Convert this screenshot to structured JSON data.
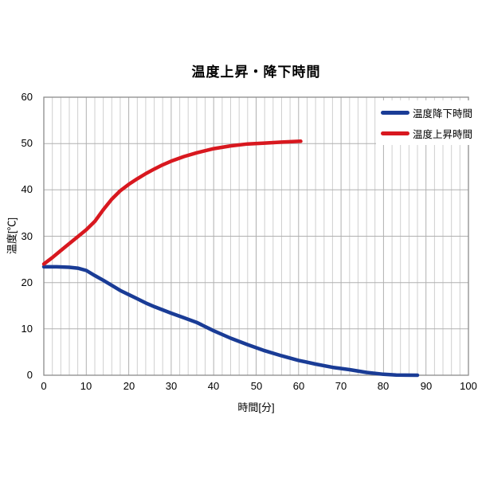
{
  "chart": {
    "title": "温度上昇・降下時間",
    "xlabel": "時間[分]",
    "ylabel": "温度[℃]"
  },
  "chart_data": {
    "type": "line",
    "title": "温度上昇・降下時間",
    "xlabel": "時間[分]",
    "ylabel": "温度[℃]",
    "xlim": [
      0,
      100
    ],
    "ylim": [
      0,
      60
    ],
    "x_major_ticks": [
      0,
      10,
      20,
      30,
      40,
      50,
      60,
      70,
      80,
      90,
      100
    ],
    "y_major_ticks": [
      0,
      10,
      20,
      30,
      40,
      50,
      60
    ],
    "x_minor_step": 2,
    "grid": {
      "minor_color": "#cfcfcf",
      "major_color": "#b0b0b0",
      "border_color": "#8c8c8c"
    },
    "legend": {
      "position": "top-right",
      "items": [
        {
          "label": "温度降下時間",
          "color": "#1a3c96"
        },
        {
          "label": "温度上昇時間",
          "color": "#d8181f"
        }
      ]
    },
    "series": [
      {
        "id": "cooling",
        "name": "温度降下時間",
        "color": "#1a3c96",
        "points": [
          [
            0,
            23.4
          ],
          [
            3,
            23.4
          ],
          [
            6,
            23.3
          ],
          [
            8,
            23.1
          ],
          [
            10,
            22.6
          ],
          [
            12,
            21.5
          ],
          [
            14,
            20.5
          ],
          [
            16,
            19.4
          ],
          [
            18,
            18.3
          ],
          [
            20,
            17.4
          ],
          [
            22,
            16.5
          ],
          [
            24,
            15.6
          ],
          [
            26,
            14.8
          ],
          [
            28,
            14.1
          ],
          [
            30,
            13.4
          ],
          [
            33,
            12.4
          ],
          [
            36,
            11.4
          ],
          [
            40,
            9.6
          ],
          [
            44,
            8.0
          ],
          [
            48,
            6.6
          ],
          [
            52,
            5.3
          ],
          [
            56,
            4.2
          ],
          [
            60,
            3.2
          ],
          [
            64,
            2.4
          ],
          [
            68,
            1.7
          ],
          [
            72,
            1.2
          ],
          [
            76,
            0.6
          ],
          [
            80,
            0.2
          ],
          [
            83,
            0.05
          ],
          [
            88,
            0
          ]
        ]
      },
      {
        "id": "heating",
        "name": "温度上昇時間",
        "color": "#d8181f",
        "points": [
          [
            0,
            24.0
          ],
          [
            2,
            25.4
          ],
          [
            4,
            26.9
          ],
          [
            6,
            28.4
          ],
          [
            8,
            29.9
          ],
          [
            10,
            31.4
          ],
          [
            12,
            33.2
          ],
          [
            14,
            35.7
          ],
          [
            16,
            38.0
          ],
          [
            18,
            39.8
          ],
          [
            20,
            41.2
          ],
          [
            22,
            42.4
          ],
          [
            24,
            43.5
          ],
          [
            26,
            44.5
          ],
          [
            28,
            45.4
          ],
          [
            30,
            46.2
          ],
          [
            33,
            47.2
          ],
          [
            36,
            48.0
          ],
          [
            40,
            48.9
          ],
          [
            44,
            49.5
          ],
          [
            48,
            49.9
          ],
          [
            52,
            50.1
          ],
          [
            56,
            50.3
          ],
          [
            60.5,
            50.5
          ]
        ]
      }
    ]
  }
}
